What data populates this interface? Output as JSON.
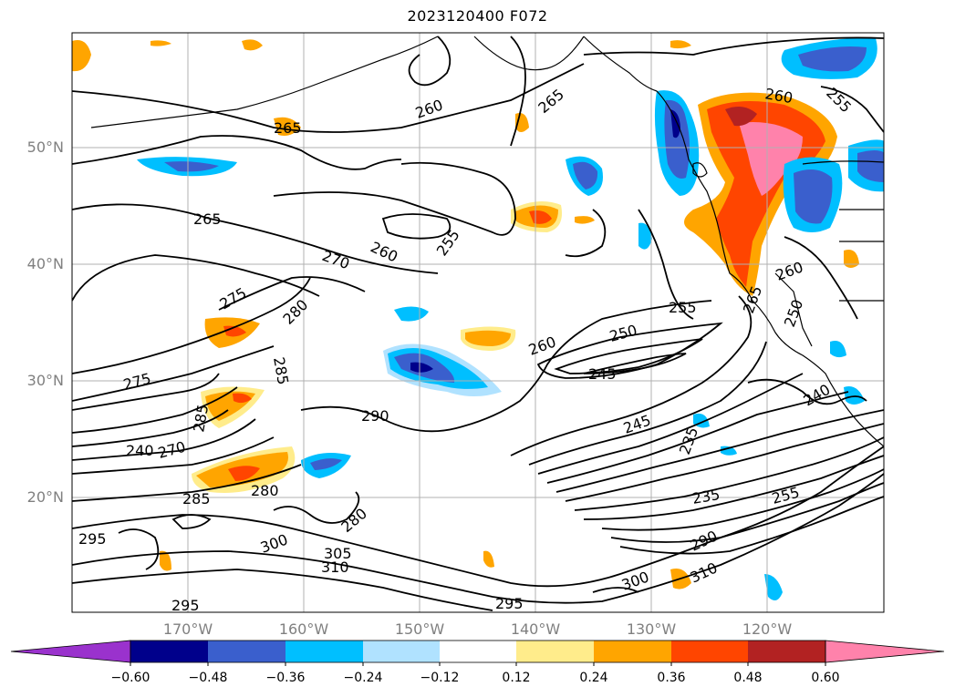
{
  "title": "2023120400 F072",
  "lat_labels": [
    "50°N",
    "40°N",
    "30°N",
    "20°N"
  ],
  "lon_labels": [
    "170°W",
    "160°W",
    "150°W",
    "140°W",
    "130°W",
    "120°W"
  ],
  "contour_labels": [
    "260",
    "265",
    "265",
    "255",
    "265",
    "260",
    "270",
    "255",
    "275",
    "280",
    "285",
    "260",
    "250",
    "255",
    "245",
    "260",
    "275",
    "290",
    "245",
    "235",
    "240",
    "260",
    "270",
    "285",
    "280",
    "280",
    "235",
    "255",
    "290",
    "285",
    "300",
    "305",
    "310",
    "300",
    "310",
    "295",
    "295",
    "265",
    "250",
    "240",
    "295"
  ],
  "colorbar": {
    "ticks": [
      "−0.60",
      "−0.48",
      "−0.36",
      "−0.24",
      "−0.12",
      "0.12",
      "0.24",
      "0.36",
      "0.48",
      "0.60"
    ],
    "colors": [
      "#9a32cd",
      "#00008b",
      "#3a5fcd",
      "#00bfff",
      "#b0e2ff",
      "#ffffff",
      "#ffec8b",
      "#ffa500",
      "#ff4500",
      "#b22222",
      "#ff82ab"
    ]
  }
}
